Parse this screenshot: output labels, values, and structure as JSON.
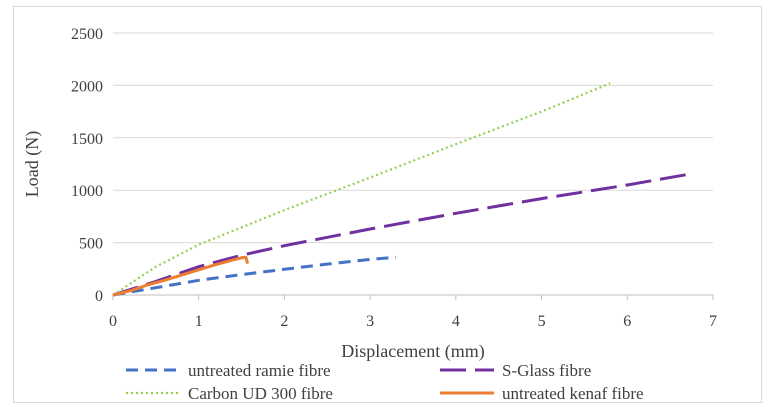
{
  "chart_data": {
    "type": "line",
    "xlabel": "Displacement (mm)",
    "ylabel": "Load (N)",
    "xlim": [
      0,
      7
    ],
    "ylim": [
      0,
      2500
    ],
    "x_ticks": [
      0,
      1,
      2,
      3,
      4,
      5,
      6,
      7
    ],
    "y_ticks": [
      0,
      500,
      1000,
      1500,
      2000,
      2500
    ],
    "grid": "horizontal",
    "legend_position": "bottom",
    "series": [
      {
        "name": "untreated ramie fibre",
        "color": "#4472c4",
        "style": "dashed",
        "x": [
          0,
          0.5,
          1,
          1.5,
          2,
          2.5,
          3,
          3.3
        ],
        "y": [
          0,
          70,
          140,
          195,
          245,
          295,
          340,
          360
        ]
      },
      {
        "name": "S-Glass fibre",
        "color": "#7030a0",
        "style": "long-dashed",
        "x": [
          0,
          0.5,
          1,
          1.5,
          2,
          3,
          4,
          5,
          6,
          6.7
        ],
        "y": [
          0,
          130,
          270,
          380,
          470,
          630,
          780,
          920,
          1050,
          1150
        ]
      },
      {
        "name": "Carbon UD 300 fibre",
        "color": "#92d050",
        "style": "dotted",
        "x": [
          0,
          0.5,
          1,
          2,
          3,
          4,
          5,
          5.8
        ],
        "y": [
          0,
          270,
          480,
          810,
          1120,
          1440,
          1750,
          2020
        ]
      },
      {
        "name": "untreated kenaf fibre",
        "color": "#ed7d31",
        "style": "solid",
        "x": [
          0,
          0.2,
          0.4,
          0.6,
          0.8,
          1.0,
          1.2,
          1.4,
          1.5,
          1.55,
          1.57
        ],
        "y": [
          0,
          40,
          95,
          140,
          190,
          240,
          290,
          335,
          355,
          360,
          300
        ]
      }
    ]
  }
}
